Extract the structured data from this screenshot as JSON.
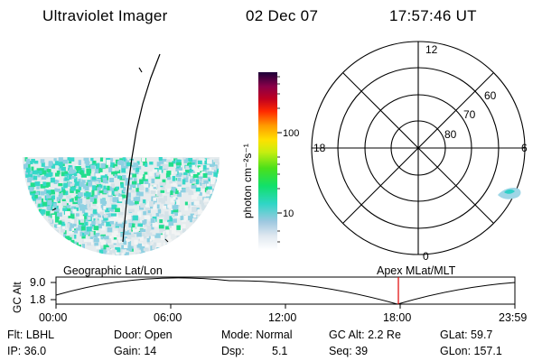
{
  "header": {
    "instrument": "Ultraviolet Imager",
    "date": "02 Dec 07",
    "time": "17:57:46 UT"
  },
  "colorbar": {
    "unit_label": "photon cm⁻²s⁻¹",
    "ticks": [
      "100",
      "10"
    ]
  },
  "polar_plot": {
    "mlt_labels": {
      "top": "12",
      "left": "18",
      "right": "6",
      "bottom": "0"
    },
    "lat_labels": [
      "60",
      "70",
      "80"
    ]
  },
  "timeline": {
    "left_title": "Geographic Lat/Lon",
    "right_title": "Apex MLat/MLT",
    "axis_label": "GC Alt",
    "y_max": "9.0",
    "y_min": "1.8",
    "x_ticks": [
      "00:00",
      "06:00",
      "12:00",
      "18:00",
      "23:59"
    ]
  },
  "info": {
    "filter": "Flt: LBHL",
    "ip": "IP: 36.0",
    "door": "Door: Open",
    "gain": "Gain: 14",
    "mode": "Mode: Normal",
    "dsp_label": "Dsp:",
    "dsp_value": "5.1",
    "gc_alt": "GC Alt: 2.2 Re",
    "seq": "Seq: 39",
    "glat": "GLat: 59.7",
    "glon": "GLon: 157.1"
  }
}
